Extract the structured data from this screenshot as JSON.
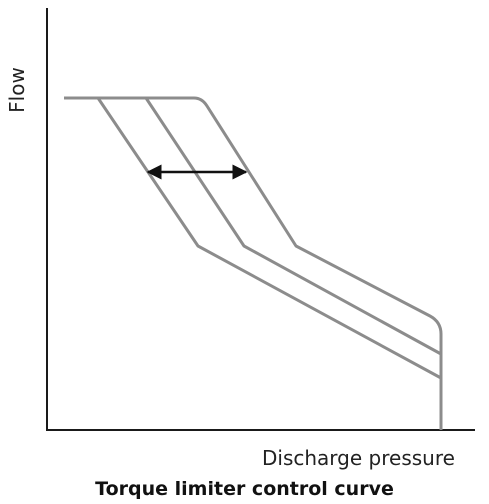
{
  "diagram": {
    "ylabel": "Flow",
    "xlabel": "Discharge pressure",
    "caption": "Torque limiter control curve",
    "curve_color": "#8c8c8c",
    "axis_color": "#1a1a1a",
    "arrow_color": "#111111",
    "curve_count": 3,
    "arrow": "double-headed horizontal arrow indicating the curve shifts left/right"
  }
}
